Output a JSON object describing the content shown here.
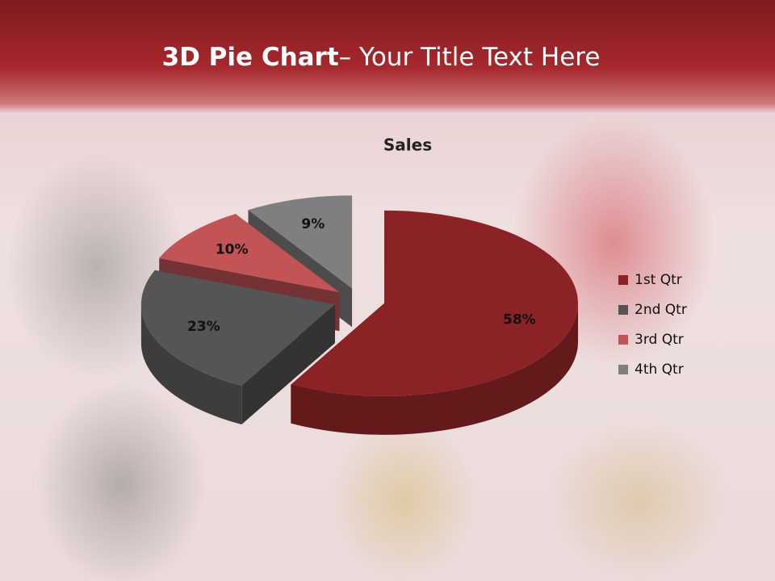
{
  "header": {
    "title_bold": "3D Pie Chart",
    "title_rest": "– Your Title Text Here"
  },
  "chart_data": {
    "type": "pie",
    "title": "Sales",
    "categories": [
      "1st Qtr",
      "2nd Qtr",
      "3rd Qtr",
      "4th Qtr"
    ],
    "values": [
      58,
      23,
      10,
      9
    ],
    "value_labels": [
      "58%",
      "23%",
      "10%",
      "9%"
    ],
    "colors": [
      "#8b2326",
      "#555555",
      "#c25456",
      "#7f7f7f"
    ],
    "legend": "right"
  }
}
